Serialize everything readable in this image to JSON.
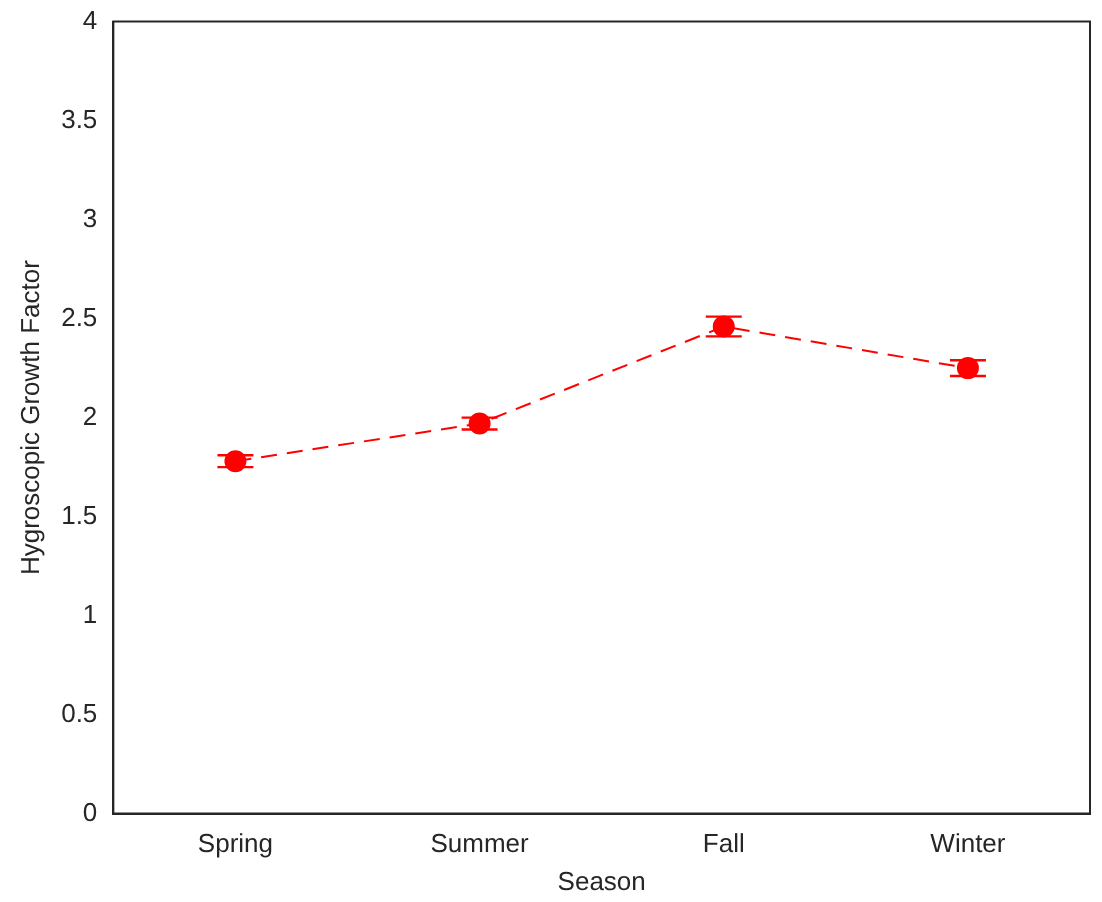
{
  "chart_data": {
    "type": "line",
    "xlabel": "Season",
    "ylabel": "Hygroscopic Growth Factor",
    "categories": [
      "Spring",
      "Summer",
      "Fall",
      "Winter"
    ],
    "series": [
      {
        "color": "#ff0000",
        "values": [
          1.78,
          1.97,
          2.46,
          2.25
        ],
        "errors": [
          0.03,
          0.03,
          0.05,
          0.04
        ]
      }
    ],
    "ylim": [
      0,
      4
    ],
    "yticks": [
      0,
      0.5,
      1,
      1.5,
      2,
      2.5,
      3,
      3.5,
      4
    ],
    "grid": false,
    "legend": false,
    "marker": "circle",
    "line_style": "dashed"
  }
}
